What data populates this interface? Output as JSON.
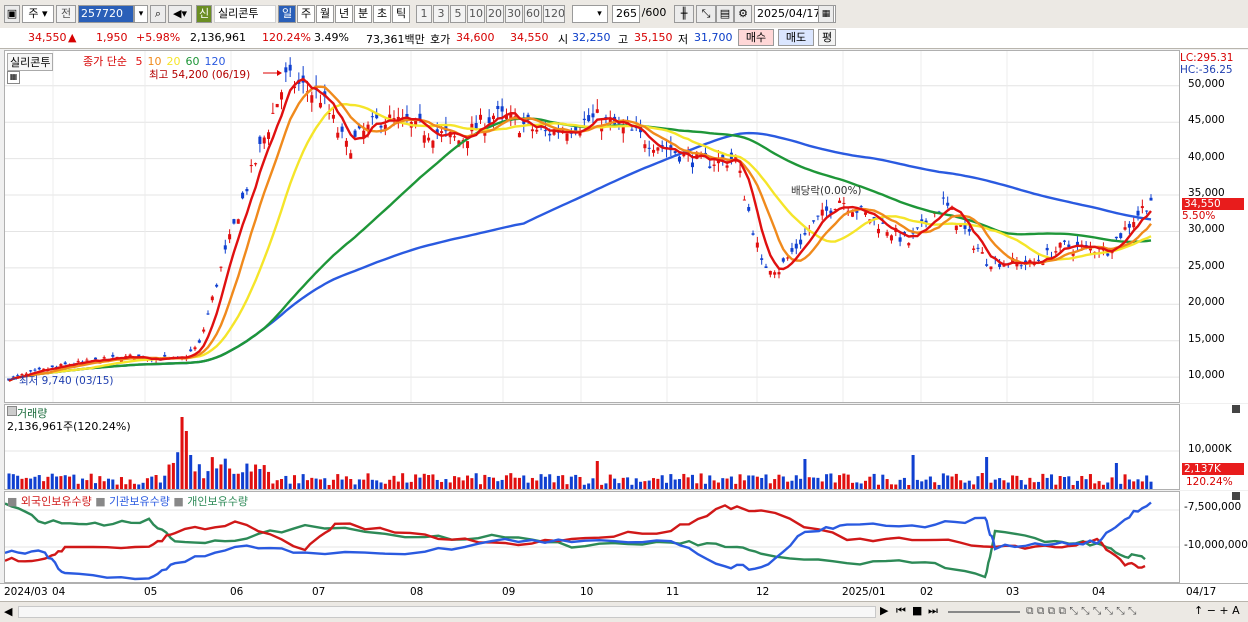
{
  "toolbar": {
    "market_label": "주",
    "prev_label": "전",
    "code": "257720",
    "name_tag": "신",
    "stock_name": "실리콘투",
    "periods": [
      "일",
      "주",
      "월",
      "년",
      "분",
      "초",
      "틱"
    ],
    "active_period": "일",
    "minute_steps": [
      "1",
      "3",
      "5",
      "10",
      "20",
      "30",
      "60",
      "120"
    ],
    "count": "265",
    "count_max": "/600",
    "date": "2025/04/17"
  },
  "quote": {
    "price": "34,550",
    "change_arrow": "▲",
    "change": "1,950",
    "change_pct": "+5.98%",
    "volume": "2,136,961",
    "volume_ratio": "120.24%",
    "turnover": "3.49%",
    "amount": "73,361백만",
    "bid_label": "호가",
    "bid": "34,600",
    "ask": "34,550",
    "open_label": "시",
    "open": "32,250",
    "high_label": "고",
    "high": "35,150",
    "low_label": "저",
    "low": "31,700",
    "buy_label": "매수",
    "sell_label": "매도",
    "eval_label": "평"
  },
  "price_pane": {
    "stock_label": "실리콘투",
    "ma_label": "종가 단순",
    "ma_periods": [
      "5",
      "10",
      "20",
      "60",
      "120"
    ],
    "ma_colors": [
      "#e01010",
      "#f08a1c",
      "#f5e52a",
      "#1e9638",
      "#2a5ae0"
    ],
    "max_annot": "최고 54,200 (06/19)",
    "min_annot": "최저 9,740 (03/15)",
    "div_annot": "배당락(0.00%)",
    "lc": "LC:295.31",
    "hc": "HC:-36.25",
    "y_ticks": [
      "50,000",
      "45,000",
      "40,000",
      "35,000",
      "30,000",
      "25,000",
      "20,000",
      "15,000",
      "10,000"
    ],
    "cur_price_tag": "34,550",
    "cur_pct_tag": "5.50%"
  },
  "volume_pane": {
    "title": "거래량",
    "value": "2,136,961주(120.24%)",
    "y_tick": "10,000K",
    "tag": "2,137K",
    "tag_pct": "120.24%"
  },
  "holding_pane": {
    "legend": [
      "외국인보유수량",
      "기관보유수량",
      "개인보유수량"
    ],
    "legend_colors": [
      "#d01818",
      "#2a5ae0",
      "#2d8a57"
    ],
    "y_ticks": [
      "-7,500,000",
      "-10,000,000"
    ]
  },
  "x_axis": {
    "labels": [
      "2024/03",
      "04",
      "05",
      "06",
      "07",
      "08",
      "09",
      "10",
      "11",
      "12",
      "2025/01",
      "02",
      "03",
      "04"
    ],
    "right_label": "04/17"
  },
  "chart_data": {
    "type": "candlestick",
    "x_range": [
      "2024/03/15",
      "2025/04/17"
    ],
    "ylim": [
      7000,
      54500
    ],
    "close_approx": [
      9800,
      11800,
      13000,
      12500,
      13500,
      26000,
      40000,
      51000,
      49000,
      42000,
      44000,
      46000,
      44000,
      41000,
      46000,
      44000,
      41000,
      40000,
      25000,
      24500,
      33000,
      34000,
      31000,
      28000,
      36000,
      26000,
      26000,
      27500,
      34550
    ],
    "ma120_approx": [
      9600,
      10500,
      12000,
      15000,
      21000,
      27000,
      33000,
      38000,
      42000,
      42500,
      40000,
      38000,
      35000,
      33000,
      31500,
      30500
    ],
    "volume_max": "spike in 2024/05"
  }
}
